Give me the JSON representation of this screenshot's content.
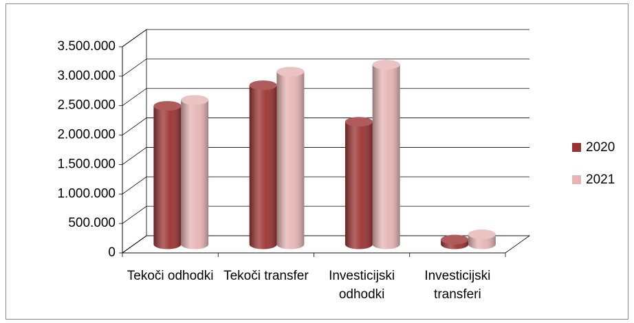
{
  "chart_data": {
    "type": "bar3d",
    "categories": [
      "Tekoči odhodki",
      "Tekoči transfer",
      "Investicijski odhodki",
      "Investicijski transferi"
    ],
    "series": [
      {
        "name": "2020",
        "color": "#9b3232",
        "values": [
          2350000,
          2700000,
          2080000,
          80000
        ]
      },
      {
        "name": "2021",
        "color": "#e6b4b4",
        "values": [
          2450000,
          2930000,
          3050000,
          170000
        ]
      }
    ],
    "ylim": [
      0,
      3500000
    ],
    "yticks": [
      0,
      {
        "value": 500000,
        "label": "500.000"
      },
      {
        "value": 1000000,
        "label": "1.000.000"
      },
      {
        "value": 1500000,
        "label": "1.500.000"
      },
      {
        "value": 2000000,
        "label": "2.000.000"
      },
      {
        "value": 2500000,
        "label": "2.500.000"
      },
      {
        "value": 3000000,
        "label": "3.000.000"
      },
      {
        "value": 3500000,
        "label": "3.500.000"
      }
    ],
    "grid": true,
    "legend": "right"
  }
}
